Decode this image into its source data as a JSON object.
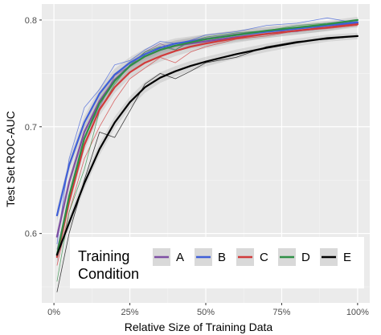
{
  "chart_data": {
    "type": "line",
    "xlabel": "Relative Size of Training Data",
    "ylabel": "Test Set ROC-AUC",
    "xlim": [
      -0.04,
      1.04
    ],
    "ylim": [
      0.535,
      0.815
    ],
    "x_ticks": [
      0,
      0.25,
      0.5,
      0.75,
      1.0
    ],
    "x_tick_labels": [
      "0%",
      "25%",
      "50%",
      "75%",
      "100%"
    ],
    "y_ticks": [
      0.6,
      0.7,
      0.8
    ],
    "y_tick_labels": [
      "0.6",
      "0.7",
      "0.8"
    ],
    "grid": true,
    "panel_background": "#ebebeb",
    "legend": {
      "title_lines": [
        "Training",
        "Condition"
      ],
      "position": "bottom-right (inside)",
      "entries": [
        "A",
        "B",
        "C",
        "D",
        "E"
      ]
    },
    "series": [
      {
        "name": "A",
        "color": "#7e4fa3",
        "smooth_x": [
          0.01,
          0.05,
          0.1,
          0.15,
          0.2,
          0.25,
          0.3,
          0.35,
          0.4,
          0.45,
          0.5,
          0.6,
          0.7,
          0.8,
          0.9,
          1.0
        ],
        "smooth_y": [
          0.597,
          0.648,
          0.695,
          0.724,
          0.744,
          0.757,
          0.766,
          0.772,
          0.776,
          0.778,
          0.78,
          0.784,
          0.787,
          0.79,
          0.793,
          0.797
        ],
        "raw_y": [
          0.585,
          0.635,
          0.69,
          0.718,
          0.748,
          0.757,
          0.77,
          0.778,
          0.772,
          0.781,
          0.783,
          0.787,
          0.79,
          0.789,
          0.795,
          0.797
        ]
      },
      {
        "name": "B",
        "color": "#3f5fd8",
        "smooth_x": [
          0.01,
          0.05,
          0.1,
          0.15,
          0.2,
          0.25,
          0.3,
          0.35,
          0.4,
          0.45,
          0.5,
          0.6,
          0.7,
          0.8,
          0.9,
          1.0
        ],
        "smooth_y": [
          0.617,
          0.664,
          0.704,
          0.731,
          0.749,
          0.76,
          0.768,
          0.774,
          0.778,
          0.78,
          0.782,
          0.786,
          0.789,
          0.792,
          0.795,
          0.798
        ],
        "raw_y": [
          0.59,
          0.67,
          0.718,
          0.735,
          0.758,
          0.762,
          0.772,
          0.78,
          0.778,
          0.781,
          0.786,
          0.789,
          0.795,
          0.797,
          0.802,
          0.797
        ]
      },
      {
        "name": "C",
        "color": "#d13a3a",
        "smooth_x": [
          0.01,
          0.05,
          0.1,
          0.15,
          0.2,
          0.25,
          0.3,
          0.35,
          0.4,
          0.45,
          0.5,
          0.6,
          0.7,
          0.8,
          0.9,
          1.0
        ],
        "smooth_y": [
          0.578,
          0.63,
          0.683,
          0.716,
          0.737,
          0.751,
          0.76,
          0.766,
          0.771,
          0.775,
          0.778,
          0.783,
          0.787,
          0.79,
          0.793,
          0.796
        ],
        "raw_y": [
          0.57,
          0.62,
          0.67,
          0.7,
          0.725,
          0.745,
          0.755,
          0.765,
          0.76,
          0.77,
          0.775,
          0.782,
          0.785,
          0.79,
          0.792,
          0.795
        ]
      },
      {
        "name": "D",
        "color": "#2f8f46",
        "smooth_x": [
          0.01,
          0.05,
          0.1,
          0.15,
          0.2,
          0.25,
          0.3,
          0.35,
          0.4,
          0.45,
          0.5,
          0.6,
          0.7,
          0.8,
          0.9,
          1.0
        ],
        "smooth_y": [
          0.58,
          0.635,
          0.689,
          0.722,
          0.743,
          0.757,
          0.766,
          0.772,
          0.776,
          0.779,
          0.782,
          0.786,
          0.79,
          0.793,
          0.796,
          0.8
        ],
        "raw_y": [
          0.555,
          0.62,
          0.66,
          0.715,
          0.74,
          0.758,
          0.77,
          0.775,
          0.772,
          0.78,
          0.784,
          0.788,
          0.79,
          0.795,
          0.797,
          0.8
        ]
      },
      {
        "name": "E",
        "color": "#000000",
        "smooth_x": [
          0.01,
          0.05,
          0.1,
          0.15,
          0.2,
          0.25,
          0.3,
          0.35,
          0.4,
          0.45,
          0.5,
          0.6,
          0.7,
          0.8,
          0.9,
          1.0
        ],
        "smooth_y": [
          0.58,
          0.61,
          0.647,
          0.679,
          0.704,
          0.723,
          0.737,
          0.746,
          0.752,
          0.757,
          0.761,
          0.768,
          0.774,
          0.779,
          0.783,
          0.785
        ],
        "raw_y": [
          0.545,
          0.6,
          0.65,
          0.695,
          0.69,
          0.715,
          0.74,
          0.75,
          0.745,
          0.752,
          0.76,
          0.765,
          0.775,
          0.78,
          0.782,
          0.785
        ]
      }
    ]
  }
}
